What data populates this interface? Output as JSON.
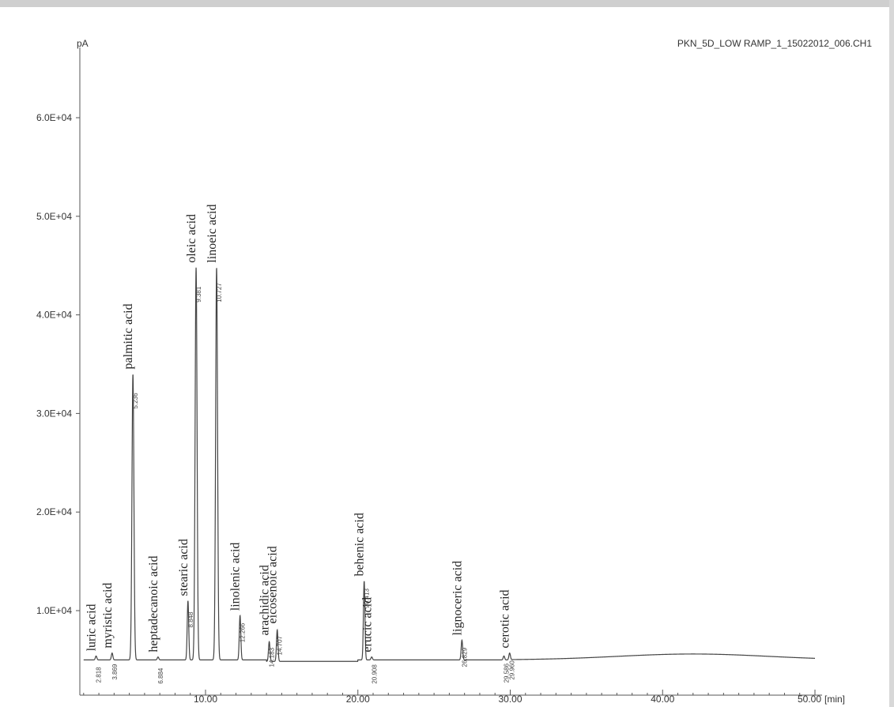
{
  "chart_data": {
    "type": "line",
    "title": "PKN_5D_LOW RAMP_1_15022012_006.CH1",
    "ylabel": "pA",
    "xlabel": "[min]",
    "xlim": [
      2,
      50
    ],
    "ylim": [
      0,
      70000
    ],
    "baseline": 5000,
    "x_ticks": [
      10,
      20,
      30,
      40,
      50
    ],
    "x_tick_labels": [
      "10.00",
      "20.00",
      "30.00",
      "40.00",
      "50.00"
    ],
    "y_ticks": [
      10000,
      20000,
      30000,
      40000,
      50000,
      60000
    ],
    "y_tick_labels": [
      "1.0E+04",
      "2.0E+04",
      "3.0E+04",
      "4.0E+04",
      "5.0E+04",
      "6.0E+04"
    ],
    "peaks": [
      {
        "name": "luric acid",
        "rt": "2.818",
        "x": 2.818,
        "height": 5400
      },
      {
        "name": "myristic acid",
        "rt": "3.869",
        "x": 3.869,
        "height": 5700
      },
      {
        "name": "palmitic acid",
        "rt": "5.236",
        "x": 5.236,
        "height": 34000
      },
      {
        "name": "heptadecanoic acid",
        "rt": "6.884",
        "x": 6.884,
        "height": 5300
      },
      {
        "name": "stearic acid",
        "rt": "8.848",
        "x": 8.848,
        "height": 11000
      },
      {
        "name": "oleic acid",
        "rt": "9.381",
        "x": 9.381,
        "height": 44800
      },
      {
        "name": "linoeic acid",
        "rt": "10.727",
        "x": 10.727,
        "height": 44800
      },
      {
        "name": "linolenic acid",
        "rt": "12.266",
        "x": 12.266,
        "height": 9500
      },
      {
        "name": "arachidic acid",
        "rt": "14.183",
        "x": 14.183,
        "height": 7000
      },
      {
        "name": "eicosenoic acid",
        "rt": "14.707",
        "x": 14.707,
        "height": 8200
      },
      {
        "name": "behenic acid",
        "rt": "20.413",
        "x": 20.413,
        "height": 13000
      },
      {
        "name": "erucic acid",
        "rt": "20.908",
        "x": 20.908,
        "height": 5300
      },
      {
        "name": "lignoceric acid",
        "rt": "26.829",
        "x": 26.829,
        "height": 7000
      },
      {
        "name": "",
        "rt": "29.586",
        "x": 29.586,
        "height": 5400
      },
      {
        "name": "cerotic acid",
        "rt": "29.960",
        "x": 29.96,
        "height": 5700
      }
    ]
  }
}
